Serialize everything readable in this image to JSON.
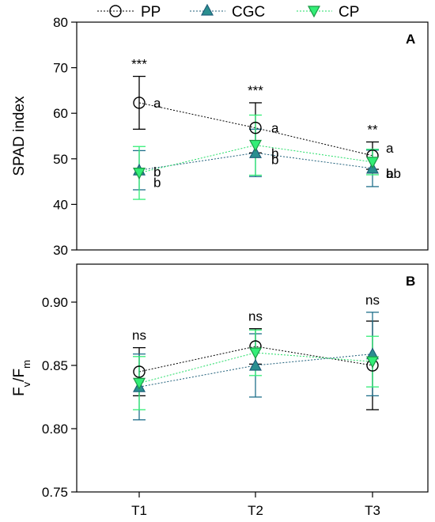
{
  "legend": [
    {
      "name": "PP",
      "marker": "circle",
      "color": "#000000",
      "fill": "none"
    },
    {
      "name": "CGC",
      "marker": "triangle-up",
      "color": "#1f5f7a",
      "fill": "#2a8f8f"
    },
    {
      "name": "CP",
      "marker": "triangle-down",
      "color": "#22dd66",
      "fill": "#33ee77"
    }
  ],
  "chart_data": [
    {
      "type": "line",
      "panel": "A",
      "ylabel": "SPAD index",
      "ylim": [
        30,
        80
      ],
      "yticks": [
        30,
        40,
        50,
        60,
        70,
        80
      ],
      "categories": [
        "T1",
        "T2",
        "T3"
      ],
      "series": [
        {
          "name": "PP",
          "values": [
            62.3,
            56.8,
            50.7
          ],
          "errors": [
            5.8,
            5.5,
            3.0
          ],
          "letters": [
            "a",
            "a",
            "a"
          ]
        },
        {
          "name": "CGC",
          "values": [
            47.5,
            51.3,
            47.9
          ],
          "errors": [
            4.3,
            5.2,
            4.0
          ],
          "letters": [
            "b",
            "b",
            "ab"
          ]
        },
        {
          "name": "CP",
          "values": [
            46.9,
            53.0,
            49.3
          ],
          "errors": [
            5.8,
            6.6,
            2.8
          ],
          "letters": [
            "b",
            "b",
            "b"
          ]
        }
      ],
      "significance": [
        "***",
        "***",
        "**"
      ]
    },
    {
      "type": "line",
      "panel": "B",
      "ylabel": "Fv/Fm",
      "ylabel_parts": {
        "main1": "F",
        "sub1": "v",
        "mid": "/F",
        "sub2": "m"
      },
      "ylim": [
        0.75,
        0.93
      ],
      "yticks": [
        0.75,
        0.8,
        0.85,
        0.9
      ],
      "ytick_labels": [
        "0.75",
        "0.80",
        "0.85",
        "0.90"
      ],
      "categories": [
        "T1",
        "T2",
        "T3"
      ],
      "series": [
        {
          "name": "PP",
          "values": [
            0.845,
            0.865,
            0.85
          ],
          "errors": [
            0.019,
            0.014,
            0.035
          ]
        },
        {
          "name": "CGC",
          "values": [
            0.833,
            0.85,
            0.859
          ],
          "errors": [
            0.026,
            0.025,
            0.033
          ]
        },
        {
          "name": "CP",
          "values": [
            0.836,
            0.86,
            0.853
          ],
          "errors": [
            0.021,
            0.018,
            0.02
          ]
        }
      ],
      "significance": [
        "ns",
        "ns",
        "ns"
      ]
    }
  ]
}
